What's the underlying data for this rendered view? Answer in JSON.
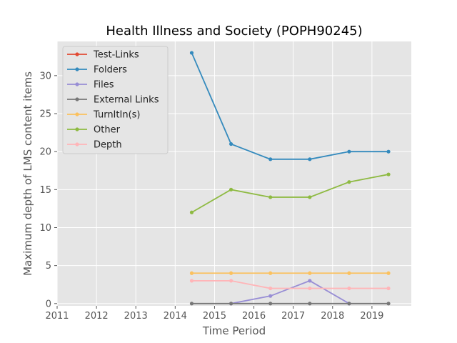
{
  "chart_data": {
    "type": "line",
    "title": "Health Illness and Society (POPH90245)",
    "xlabel": "Time Period",
    "ylabel": "Maximum depth of LMS content items",
    "xlim": [
      2011,
      2020
    ],
    "ylim": [
      -0.3,
      34.5
    ],
    "xticks": [
      2011,
      2012,
      2013,
      2014,
      2015,
      2016,
      2017,
      2018,
      2019
    ],
    "yticks": [
      0,
      5,
      10,
      15,
      20,
      25,
      30
    ],
    "grid": true,
    "legend_position": "top-left",
    "x": [
      2014.42,
      2015.42,
      2016.42,
      2017.42,
      2018.42,
      2019.42
    ],
    "series": [
      {
        "name": "Test-Links",
        "color": "#E24A33",
        "values": [
          null,
          null,
          null,
          null,
          null,
          null
        ]
      },
      {
        "name": "Folders",
        "color": "#348ABD",
        "values": [
          33,
          21,
          19,
          19,
          20,
          20
        ]
      },
      {
        "name": "Files",
        "color": "#988ED5",
        "values": [
          null,
          0,
          1,
          3,
          0,
          null
        ]
      },
      {
        "name": "External Links",
        "color": "#777777",
        "values": [
          0,
          0,
          0,
          0,
          0,
          0
        ]
      },
      {
        "name": "TurnItIn(s)",
        "color": "#FBC15E",
        "values": [
          4,
          4,
          4,
          4,
          4,
          4
        ]
      },
      {
        "name": "Other",
        "color": "#8EBA42",
        "values": [
          12,
          15,
          14,
          14,
          16,
          17
        ]
      },
      {
        "name": "Depth",
        "color": "#FFB5B8",
        "values": [
          3,
          3,
          2,
          2,
          2,
          2
        ]
      }
    ]
  }
}
